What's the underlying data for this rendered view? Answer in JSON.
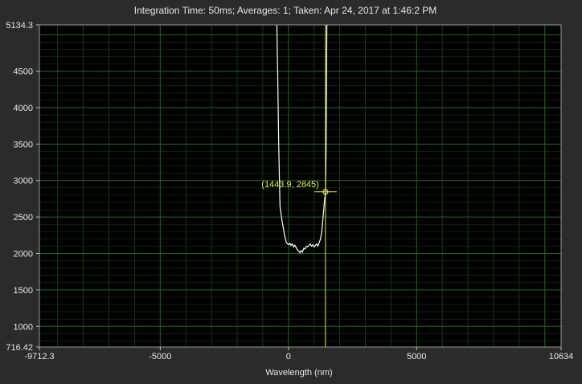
{
  "chart_data": {
    "type": "line",
    "title": "Integration Time: 50ms;  Averages: 1;  Taken: Apr 24, 2017 at 1:46:2 PM",
    "xlabel": "Wavelength (nm)",
    "ylabel": "",
    "xlim": [
      -9712.3,
      10634
    ],
    "ylim": [
      716.42,
      5134.3
    ],
    "x_tick_labels": [
      "-9712.3",
      "-5000",
      "0",
      "5000",
      "10634"
    ],
    "y_tick_labels": [
      "716.42",
      "1000",
      "1500",
      "2000",
      "2500",
      "3000",
      "3500",
      "4000",
      "4500",
      "5134.3"
    ],
    "x_ticks": [
      -9712.3,
      -5000,
      0,
      5000,
      10634
    ],
    "y_ticks": [
      716.42,
      1000,
      1500,
      2000,
      2500,
      3000,
      3500,
      4000,
      4500,
      5134.3
    ],
    "grid": true,
    "background_color": "#000000",
    "grid_color": "#1f6b1f",
    "line_color": "#ffffff",
    "cursor_color": "#e8e84a",
    "series": [
      {
        "x": [
          -450,
          -420,
          -380,
          -330,
          -250,
          -150,
          -80,
          -30,
          20,
          60,
          100,
          150,
          200,
          250,
          300,
          350,
          400,
          450,
          500,
          550,
          600,
          650,
          700,
          750,
          800,
          850,
          900,
          950,
          1000,
          1050,
          1100,
          1150,
          1200,
          1250,
          1300,
          1350,
          1400,
          1443.9,
          1470,
          1500
        ],
        "y": [
          5134.3,
          4500,
          3500,
          2650,
          2450,
          2250,
          2150,
          2130,
          2120,
          2140,
          2110,
          2130,
          2090,
          2115,
          2080,
          2050,
          2030,
          2010,
          2040,
          2020,
          2070,
          2060,
          2100,
          2090,
          2110,
          2130,
          2100,
          2120,
          2090,
          2110,
          2130,
          2100,
          2150,
          2200,
          2300,
          2500,
          2700,
          2845,
          3500,
          5134.3
        ]
      }
    ],
    "cursor": {
      "x": 1443.9,
      "y": 2845,
      "label": "(1443.9, 2845)"
    }
  }
}
